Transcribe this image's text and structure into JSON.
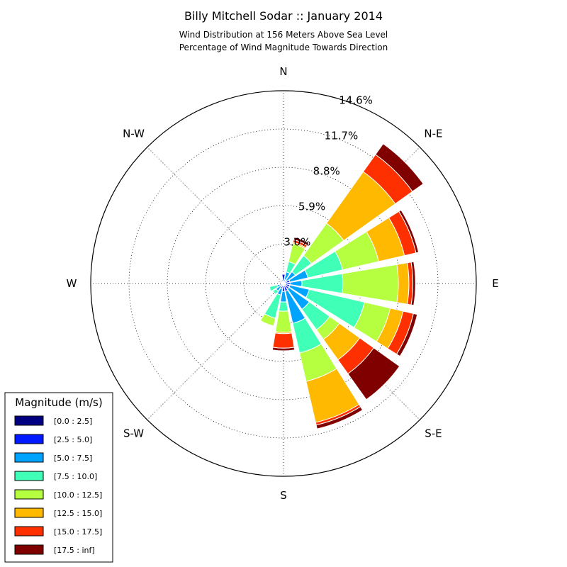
{
  "chart_data": {
    "type": "windrose",
    "title": "Billy Mitchell Sodar :: January 2014",
    "subtitle_lines": [
      "Wind Distribution at 156 Meters Above Sea Level",
      "Percentage of Wind Magnitude Towards Direction"
    ],
    "directions": [
      "N",
      "NNE",
      "NE",
      "ENE",
      "E",
      "ESE",
      "SE",
      "SSE",
      "S",
      "SSW",
      "SW",
      "WSW",
      "W",
      "WNW",
      "NW",
      "NNW"
    ],
    "direction_angles_deg": [
      0,
      22.5,
      45,
      67.5,
      90,
      112.5,
      135,
      157.5,
      180,
      202.5,
      225,
      247.5,
      270,
      292.5,
      315,
      337.5
    ],
    "direction_labels": [
      {
        "text": "N",
        "angle": 0
      },
      {
        "text": "N-E",
        "angle": 45
      },
      {
        "text": "E",
        "angle": 90
      },
      {
        "text": "S-E",
        "angle": 135
      },
      {
        "text": "S",
        "angle": 180
      },
      {
        "text": "S-W",
        "angle": 225
      },
      {
        "text": "W",
        "angle": 270
      },
      {
        "text": "N-W",
        "angle": 315
      }
    ],
    "ring_values": [
      3.0,
      5.9,
      8.8,
      11.7,
      14.6
    ],
    "ring_labels": [
      "3.0%",
      "5.9%",
      "8.8%",
      "11.7%",
      "14.6%"
    ],
    "rmax": 14.6,
    "legend_title": "Magnitude (m/s)",
    "legend_placement": "lower-left",
    "bins": [
      {
        "name": "[0.0 : 2.5]",
        "color": "#000080"
      },
      {
        "name": "[2.5 : 5.0]",
        "color": "#0019ff"
      },
      {
        "name": "[5.0 : 7.5]",
        "color": "#00a4ff"
      },
      {
        "name": "[7.5 : 10.0]",
        "color": "#40ffb6"
      },
      {
        "name": "[10.0 : 12.5]",
        "color": "#b6ff40"
      },
      {
        "name": "[12.5 : 15.0]",
        "color": "#ffb900"
      },
      {
        "name": "[15.0 : 17.5]",
        "color": "#ff3000"
      },
      {
        "name": "[17.5 : inf]",
        "color": "#800000"
      }
    ],
    "cumulative_percent": [
      [
        0.1,
        0.7,
        0.7,
        0.7,
        0.7,
        0.7,
        0.7,
        0.7
      ],
      [
        0.1,
        0.3,
        0.9,
        1.7,
        3.1,
        3.2,
        3.4,
        3.6
      ],
      [
        0.1,
        0.3,
        1.1,
        2.6,
        5.6,
        10.4,
        12.0,
        13.0
      ],
      [
        0.1,
        0.5,
        1.9,
        4.6,
        7.4,
        9.4,
        10.3,
        10.5
      ],
      [
        0.1,
        0.5,
        1.4,
        4.5,
        8.7,
        9.5,
        9.8,
        10.0
      ],
      [
        0.1,
        0.5,
        2.0,
        6.3,
        8.3,
        9.3,
        10.1,
        10.4
      ],
      [
        0.1,
        0.5,
        2.4,
        4.3,
        5.2,
        7.1,
        8.4,
        10.8
      ],
      [
        0.1,
        0.6,
        3.1,
        5.4,
        7.6,
        10.8,
        11.0,
        11.3
      ],
      [
        0.1,
        0.6,
        1.4,
        2.1,
        3.7,
        3.8,
        4.9,
        5.1
      ],
      [
        0.1,
        0.4,
        0.9,
        2.7,
        3.3,
        3.3,
        3.3,
        3.3
      ],
      [
        0.1,
        0.3,
        0.7,
        1.0,
        1.0,
        1.0,
        1.0,
        1.0
      ],
      [
        0.1,
        0.3,
        0.5,
        1.1,
        1.1,
        1.1,
        1.1,
        1.1
      ],
      [
        0.1,
        0.2,
        0.2,
        0.2,
        0.2,
        0.2,
        0.2,
        0.2
      ],
      [
        0.1,
        0.2,
        0.2,
        0.2,
        0.3,
        0.3,
        0.4,
        0.4
      ],
      [
        0.1,
        0.2,
        0.2,
        0.2,
        0.2,
        0.2,
        0.2,
        0.2
      ],
      [
        0.1,
        0.2,
        0.3,
        0.3,
        0.3,
        0.3,
        0.3,
        0.3
      ]
    ],
    "grid": true
  }
}
